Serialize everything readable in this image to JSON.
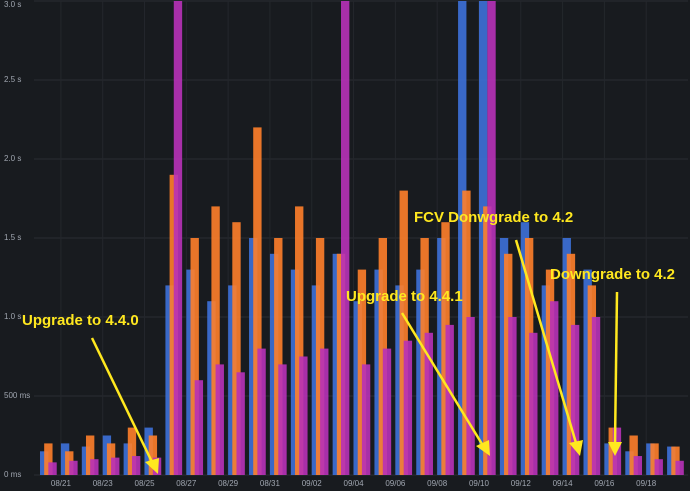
{
  "chart_data": {
    "type": "bar",
    "categories": [
      null,
      "08/21",
      null,
      "08/23",
      null,
      "08/25",
      null,
      "08/27",
      null,
      "08/29",
      null,
      "08/31",
      null,
      "09/02",
      null,
      "09/04",
      null,
      "09/06",
      null,
      "09/08",
      null,
      "09/10",
      null,
      "09/12",
      null,
      "09/14",
      null,
      "09/16",
      null,
      "09/18",
      null
    ],
    "series": [
      {
        "color": "#3d71d9",
        "values": [
          150,
          200,
          180,
          250,
          200,
          300,
          1200,
          1300,
          1100,
          1200,
          1500,
          1400,
          1300,
          1200,
          1400,
          1100,
          1300,
          1200,
          1300,
          1500,
          3000,
          3000,
          1500,
          1600,
          1200,
          1500,
          1300,
          200,
          150,
          200,
          180
        ]
      },
      {
        "color": "#ff7f2a",
        "values": [
          200,
          150,
          250,
          200,
          300,
          250,
          1900,
          1500,
          1700,
          1600,
          2200,
          1500,
          1700,
          1500,
          1400,
          1300,
          1500,
          1800,
          1500,
          1600,
          1800,
          1700,
          1400,
          1500,
          1300,
          1400,
          1200,
          300,
          250,
          200,
          180
        ]
      },
      {
        "color": "#b832b8",
        "values": [
          80,
          90,
          100,
          110,
          120,
          110,
          3000,
          600,
          700,
          650,
          800,
          700,
          750,
          800,
          3000,
          700,
          800,
          850,
          900,
          950,
          1000,
          3000,
          1000,
          900,
          1100,
          950,
          1000,
          300,
          120,
          100,
          90
        ]
      }
    ],
    "ylim": [
      0,
      3000
    ],
    "yticks": [
      {
        "value": 0,
        "label": "0 ms"
      },
      {
        "value": 500,
        "label": "500 ms"
      },
      {
        "value": 1000,
        "label": "1.0 s"
      },
      {
        "value": 1500,
        "label": "1.5 s"
      },
      {
        "value": 2000,
        "label": "2.0 s"
      },
      {
        "value": 2500,
        "label": "2.5 s"
      },
      {
        "value": 3000,
        "label": "3.0 s"
      }
    ],
    "grid": true,
    "annotations": [
      "Upgrade to 4.4.0",
      "Upgrade to 4.4.1",
      "FCV Donwgrade to 4.2",
      "Downgrade to 4.2"
    ]
  }
}
